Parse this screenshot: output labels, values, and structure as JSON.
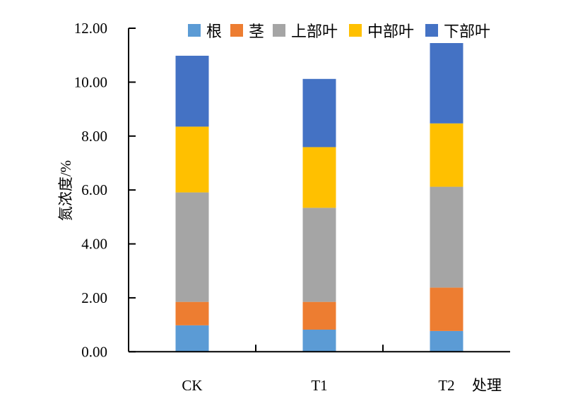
{
  "chart_data": {
    "type": "bar",
    "stacked": true,
    "title": "",
    "xlabel": "处理",
    "ylabel": "氮浓度/%",
    "ylim": [
      0,
      12
    ],
    "yticks": [
      "0.00",
      "2.00",
      "4.00",
      "6.00",
      "8.00",
      "10.00",
      "12.00"
    ],
    "categories": [
      "CK",
      "T1",
      "T2"
    ],
    "legend_position": "top-right",
    "grid": false,
    "series": [
      {
        "name": "根",
        "color": "#5B9BD5",
        "values": [
          0.98,
          0.82,
          0.77
        ]
      },
      {
        "name": "茎",
        "color": "#ED7D31",
        "values": [
          0.87,
          1.03,
          1.61
        ]
      },
      {
        "name": "上部叶",
        "color": "#A5A5A5",
        "values": [
          4.06,
          3.49,
          3.74
        ]
      },
      {
        "name": "中部叶",
        "color": "#FFC000",
        "values": [
          2.44,
          2.25,
          2.35
        ]
      },
      {
        "name": "下部叶",
        "color": "#4472C4",
        "values": [
          2.63,
          2.53,
          2.98
        ]
      }
    ]
  }
}
